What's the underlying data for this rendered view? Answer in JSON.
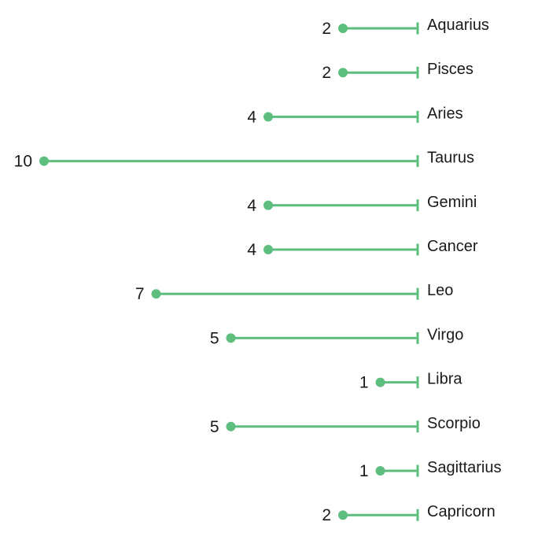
{
  "chart_data": {
    "type": "lollipop",
    "orientation": "horizontal-right-anchored",
    "categories": [
      "Aquarius",
      "Pisces",
      "Aries",
      "Taurus",
      "Gemini",
      "Cancer",
      "Leo",
      "Virgo",
      "Libra",
      "Scorpio",
      "Sagittarius",
      "Capricorn"
    ],
    "values": [
      2,
      2,
      4,
      10,
      4,
      4,
      7,
      5,
      1,
      5,
      1,
      2
    ],
    "value_labels": [
      "2",
      "2",
      "4",
      "10",
      "4",
      "4",
      "7",
      "5",
      "1",
      "5",
      "1",
      "2"
    ],
    "xlim": [
      0,
      10
    ],
    "title": "",
    "xlabel": "",
    "ylabel": "",
    "grid": false,
    "colors": {
      "mark": "#5DBE7E",
      "text": "#1a1a1a"
    }
  }
}
